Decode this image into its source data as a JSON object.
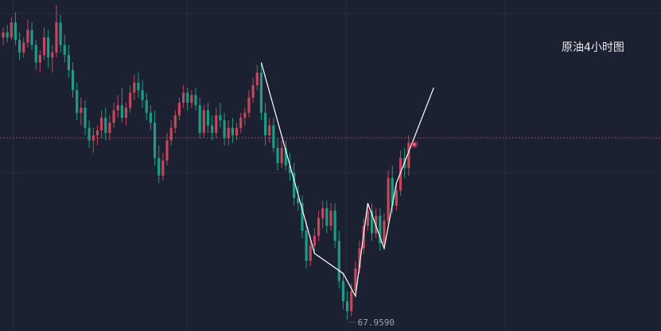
{
  "chart_data": {
    "type": "candlestick",
    "title": "原油4小时图",
    "low_label": "67.9590",
    "low_value": 67.959,
    "current_price_line": 75.2,
    "ylim": [
      67.7,
      80.5
    ],
    "up_color": "#c2485c",
    "down_color": "#1f9a85",
    "grid": true,
    "bars": [
      [
        79.2,
        79.6,
        78.9,
        79.4
      ],
      [
        79.4,
        79.7,
        79.0,
        79.2
      ],
      [
        79.2,
        80.0,
        79.1,
        79.8
      ],
      [
        79.8,
        80.2,
        78.9,
        79.1
      ],
      [
        79.1,
        79.4,
        78.3,
        78.6
      ],
      [
        78.6,
        79.2,
        78.4,
        79.0
      ],
      [
        79.0,
        79.9,
        78.8,
        79.5
      ],
      [
        79.5,
        79.8,
        78.7,
        78.9
      ],
      [
        78.9,
        79.1,
        77.9,
        78.2
      ],
      [
        78.2,
        78.7,
        77.8,
        78.5
      ],
      [
        78.5,
        79.6,
        78.3,
        79.2
      ],
      [
        79.2,
        79.5,
        78.0,
        78.4
      ],
      [
        78.4,
        78.9,
        77.8,
        78.6
      ],
      [
        78.6,
        80.5,
        78.4,
        79.8
      ],
      [
        79.8,
        80.1,
        78.6,
        78.9
      ],
      [
        78.9,
        79.3,
        78.2,
        78.5
      ],
      [
        78.5,
        78.9,
        77.6,
        77.9
      ],
      [
        77.9,
        78.2,
        76.8,
        77.1
      ],
      [
        77.1,
        77.4,
        75.9,
        76.2
      ],
      [
        76.2,
        76.8,
        75.7,
        76.4
      ],
      [
        76.4,
        76.7,
        75.3,
        75.6
      ],
      [
        75.6,
        75.9,
        74.8,
        75.1
      ],
      [
        75.1,
        75.6,
        74.6,
        75.3
      ],
      [
        75.3,
        75.7,
        74.9,
        75.5
      ],
      [
        75.5,
        76.3,
        75.2,
        76.0
      ],
      [
        76.0,
        76.4,
        75.1,
        75.4
      ],
      [
        75.4,
        76.1,
        75.1,
        75.8
      ],
      [
        75.8,
        76.6,
        75.6,
        76.3
      ],
      [
        76.3,
        76.9,
        76.0,
        76.5
      ],
      [
        76.5,
        77.2,
        75.8,
        76.0
      ],
      [
        76.0,
        76.6,
        75.7,
        76.4
      ],
      [
        76.4,
        77.3,
        76.2,
        77.0
      ],
      [
        77.0,
        77.7,
        76.7,
        77.4
      ],
      [
        77.4,
        77.8,
        76.8,
        77.1
      ],
      [
        77.1,
        77.5,
        76.4,
        76.7
      ],
      [
        76.7,
        77.0,
        75.9,
        76.2
      ],
      [
        76.2,
        76.5,
        75.5,
        75.8
      ],
      [
        75.8,
        76.3,
        74.1,
        74.4
      ],
      [
        74.4,
        74.9,
        73.4,
        73.7
      ],
      [
        73.7,
        74.6,
        73.5,
        74.3
      ],
      [
        74.3,
        75.4,
        74.1,
        75.1
      ],
      [
        75.1,
        75.9,
        74.9,
        75.6
      ],
      [
        75.6,
        76.3,
        75.4,
        76.1
      ],
      [
        76.1,
        76.8,
        75.9,
        76.6
      ],
      [
        76.6,
        77.3,
        76.4,
        77.0
      ],
      [
        77.0,
        77.2,
        76.3,
        76.6
      ],
      [
        76.6,
        77.1,
        76.4,
        76.9
      ],
      [
        76.9,
        77.2,
        76.3,
        76.5
      ],
      [
        76.5,
        76.8,
        75.2,
        75.4
      ],
      [
        75.4,
        76.5,
        75.2,
        76.3
      ],
      [
        76.3,
        76.6,
        75.4,
        75.7
      ],
      [
        75.7,
        76.1,
        75.1,
        75.4
      ],
      [
        75.4,
        76.4,
        75.2,
        76.1
      ],
      [
        76.1,
        76.6,
        75.6,
        75.9
      ],
      [
        75.9,
        76.2,
        74.9,
        75.2
      ],
      [
        75.2,
        75.9,
        74.9,
        75.6
      ],
      [
        75.6,
        76.0,
        75.0,
        75.3
      ],
      [
        75.3,
        75.8,
        75.1,
        75.6
      ],
      [
        75.6,
        76.2,
        75.4,
        76.0
      ],
      [
        76.0,
        76.4,
        75.7,
        76.2
      ],
      [
        76.2,
        77.1,
        76.0,
        76.8
      ],
      [
        76.8,
        77.6,
        76.6,
        77.3
      ],
      [
        77.3,
        78.1,
        77.1,
        77.8
      ],
      [
        77.8,
        78.2,
        75.9,
        76.2
      ],
      [
        76.2,
        76.6,
        74.9,
        75.3
      ],
      [
        75.3,
        76.0,
        75.0,
        75.7
      ],
      [
        75.7,
        76.0,
        74.6,
        74.8
      ],
      [
        74.8,
        75.2,
        73.9,
        74.2
      ],
      [
        74.2,
        75.1,
        74.0,
        74.8
      ],
      [
        74.8,
        75.1,
        73.9,
        74.1
      ],
      [
        74.1,
        74.6,
        73.5,
        73.8
      ],
      [
        73.8,
        74.2,
        72.5,
        72.8
      ],
      [
        72.8,
        73.3,
        72.3,
        72.6
      ],
      [
        72.6,
        72.9,
        71.2,
        71.5
      ],
      [
        71.5,
        71.9,
        70.0,
        70.3
      ],
      [
        70.3,
        71.3,
        70.1,
        70.9
      ],
      [
        70.9,
        71.6,
        70.6,
        71.3
      ],
      [
        71.3,
        72.3,
        71.1,
        72.0
      ],
      [
        72.0,
        72.7,
        71.6,
        72.4
      ],
      [
        72.4,
        72.7,
        71.4,
        71.7
      ],
      [
        71.7,
        72.6,
        71.5,
        72.3
      ],
      [
        72.3,
        72.6,
        70.8,
        71.1
      ],
      [
        71.1,
        71.5,
        69.2,
        69.5
      ],
      [
        69.5,
        69.8,
        68.4,
        68.7
      ],
      [
        68.7,
        69.1,
        67.96,
        68.3
      ],
      [
        68.3,
        69.4,
        68.1,
        69.1
      ],
      [
        69.1,
        70.3,
        68.9,
        70.0
      ],
      [
        70.0,
        71.1,
        69.8,
        70.8
      ],
      [
        70.8,
        72.0,
        70.6,
        71.7
      ],
      [
        71.7,
        72.6,
        71.5,
        72.3
      ],
      [
        72.3,
        72.6,
        71.1,
        71.4
      ],
      [
        71.4,
        72.4,
        71.2,
        72.1
      ],
      [
        72.1,
        72.4,
        70.7,
        71.0
      ],
      [
        71.0,
        72.2,
        70.8,
        71.9
      ],
      [
        71.9,
        73.9,
        71.7,
        73.6
      ],
      [
        73.6,
        74.1,
        72.2,
        72.5
      ],
      [
        72.5,
        73.4,
        72.3,
        73.1
      ],
      [
        73.1,
        74.7,
        72.9,
        74.4
      ],
      [
        74.4,
        74.8,
        73.6,
        74.0
      ],
      [
        74.0,
        75.3,
        73.7,
        75.0
      ]
    ]
  }
}
